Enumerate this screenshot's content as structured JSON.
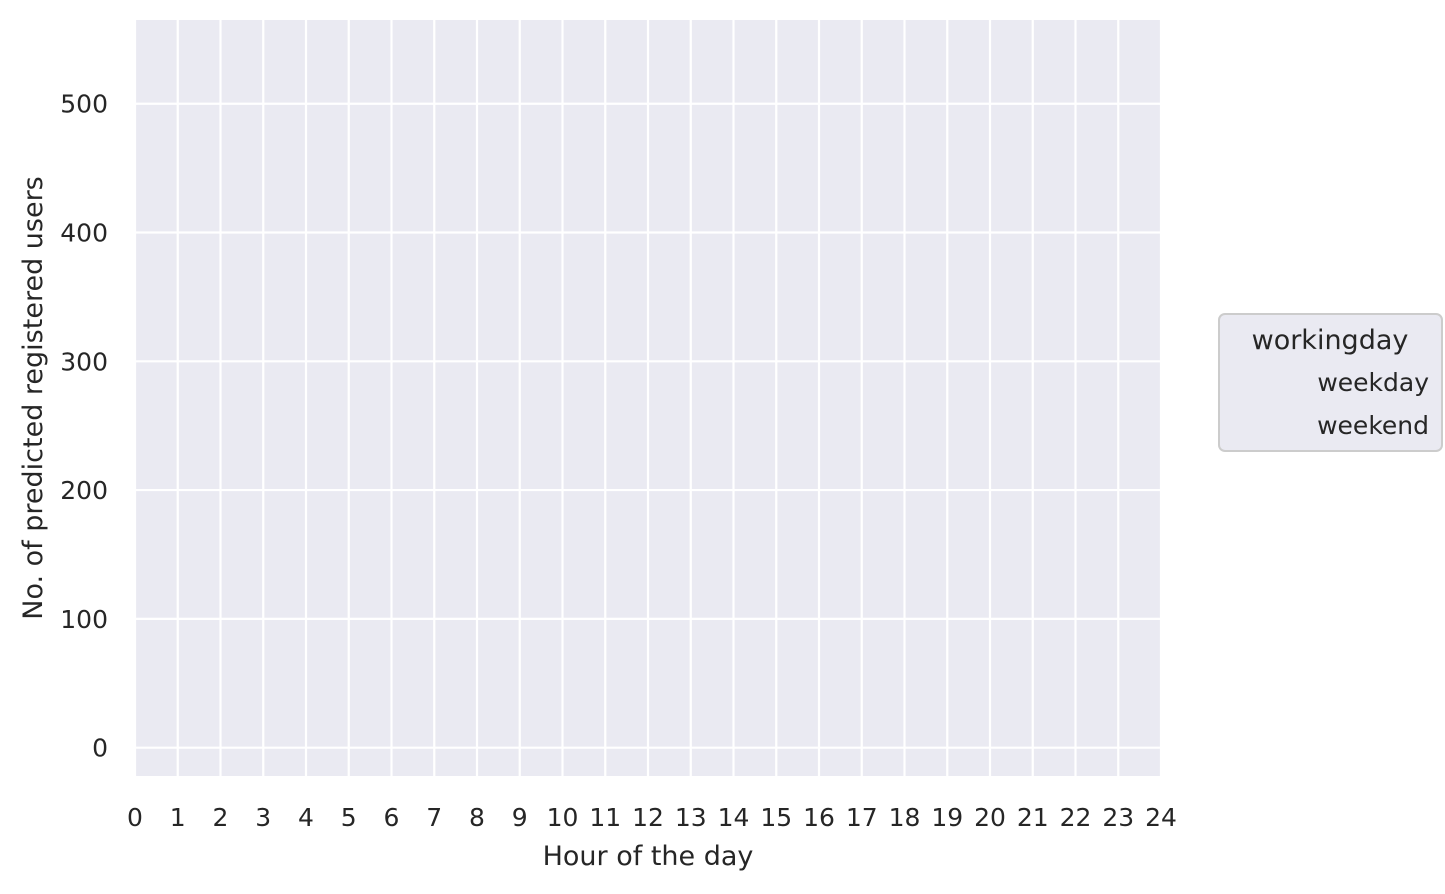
{
  "chart_data": {
    "type": "line",
    "title": "",
    "xlabel": "Hour of the day",
    "ylabel": "No. of predicted registered users",
    "xlim": [
      0,
      24
    ],
    "ylim": [
      -22,
      565
    ],
    "x_ticks": [
      0,
      1,
      2,
      3,
      4,
      5,
      6,
      7,
      8,
      9,
      10,
      11,
      12,
      13,
      14,
      15,
      16,
      17,
      18,
      19,
      20,
      21,
      22,
      23,
      24
    ],
    "y_ticks": [
      0,
      100,
      200,
      300,
      400,
      500
    ],
    "grid": true,
    "legend": {
      "title": "workingday",
      "placement": "right-outside",
      "entries": [
        "weekday",
        "weekend"
      ]
    },
    "series": [
      {
        "name": "weekday",
        "x": [],
        "values": []
      },
      {
        "name": "weekend",
        "x": [],
        "values": []
      }
    ],
    "colors": {
      "plot_background": "#EAEAF2",
      "grid": "#FFFFFF",
      "text": "#262626",
      "legend_border": "#CCCCCC"
    }
  }
}
